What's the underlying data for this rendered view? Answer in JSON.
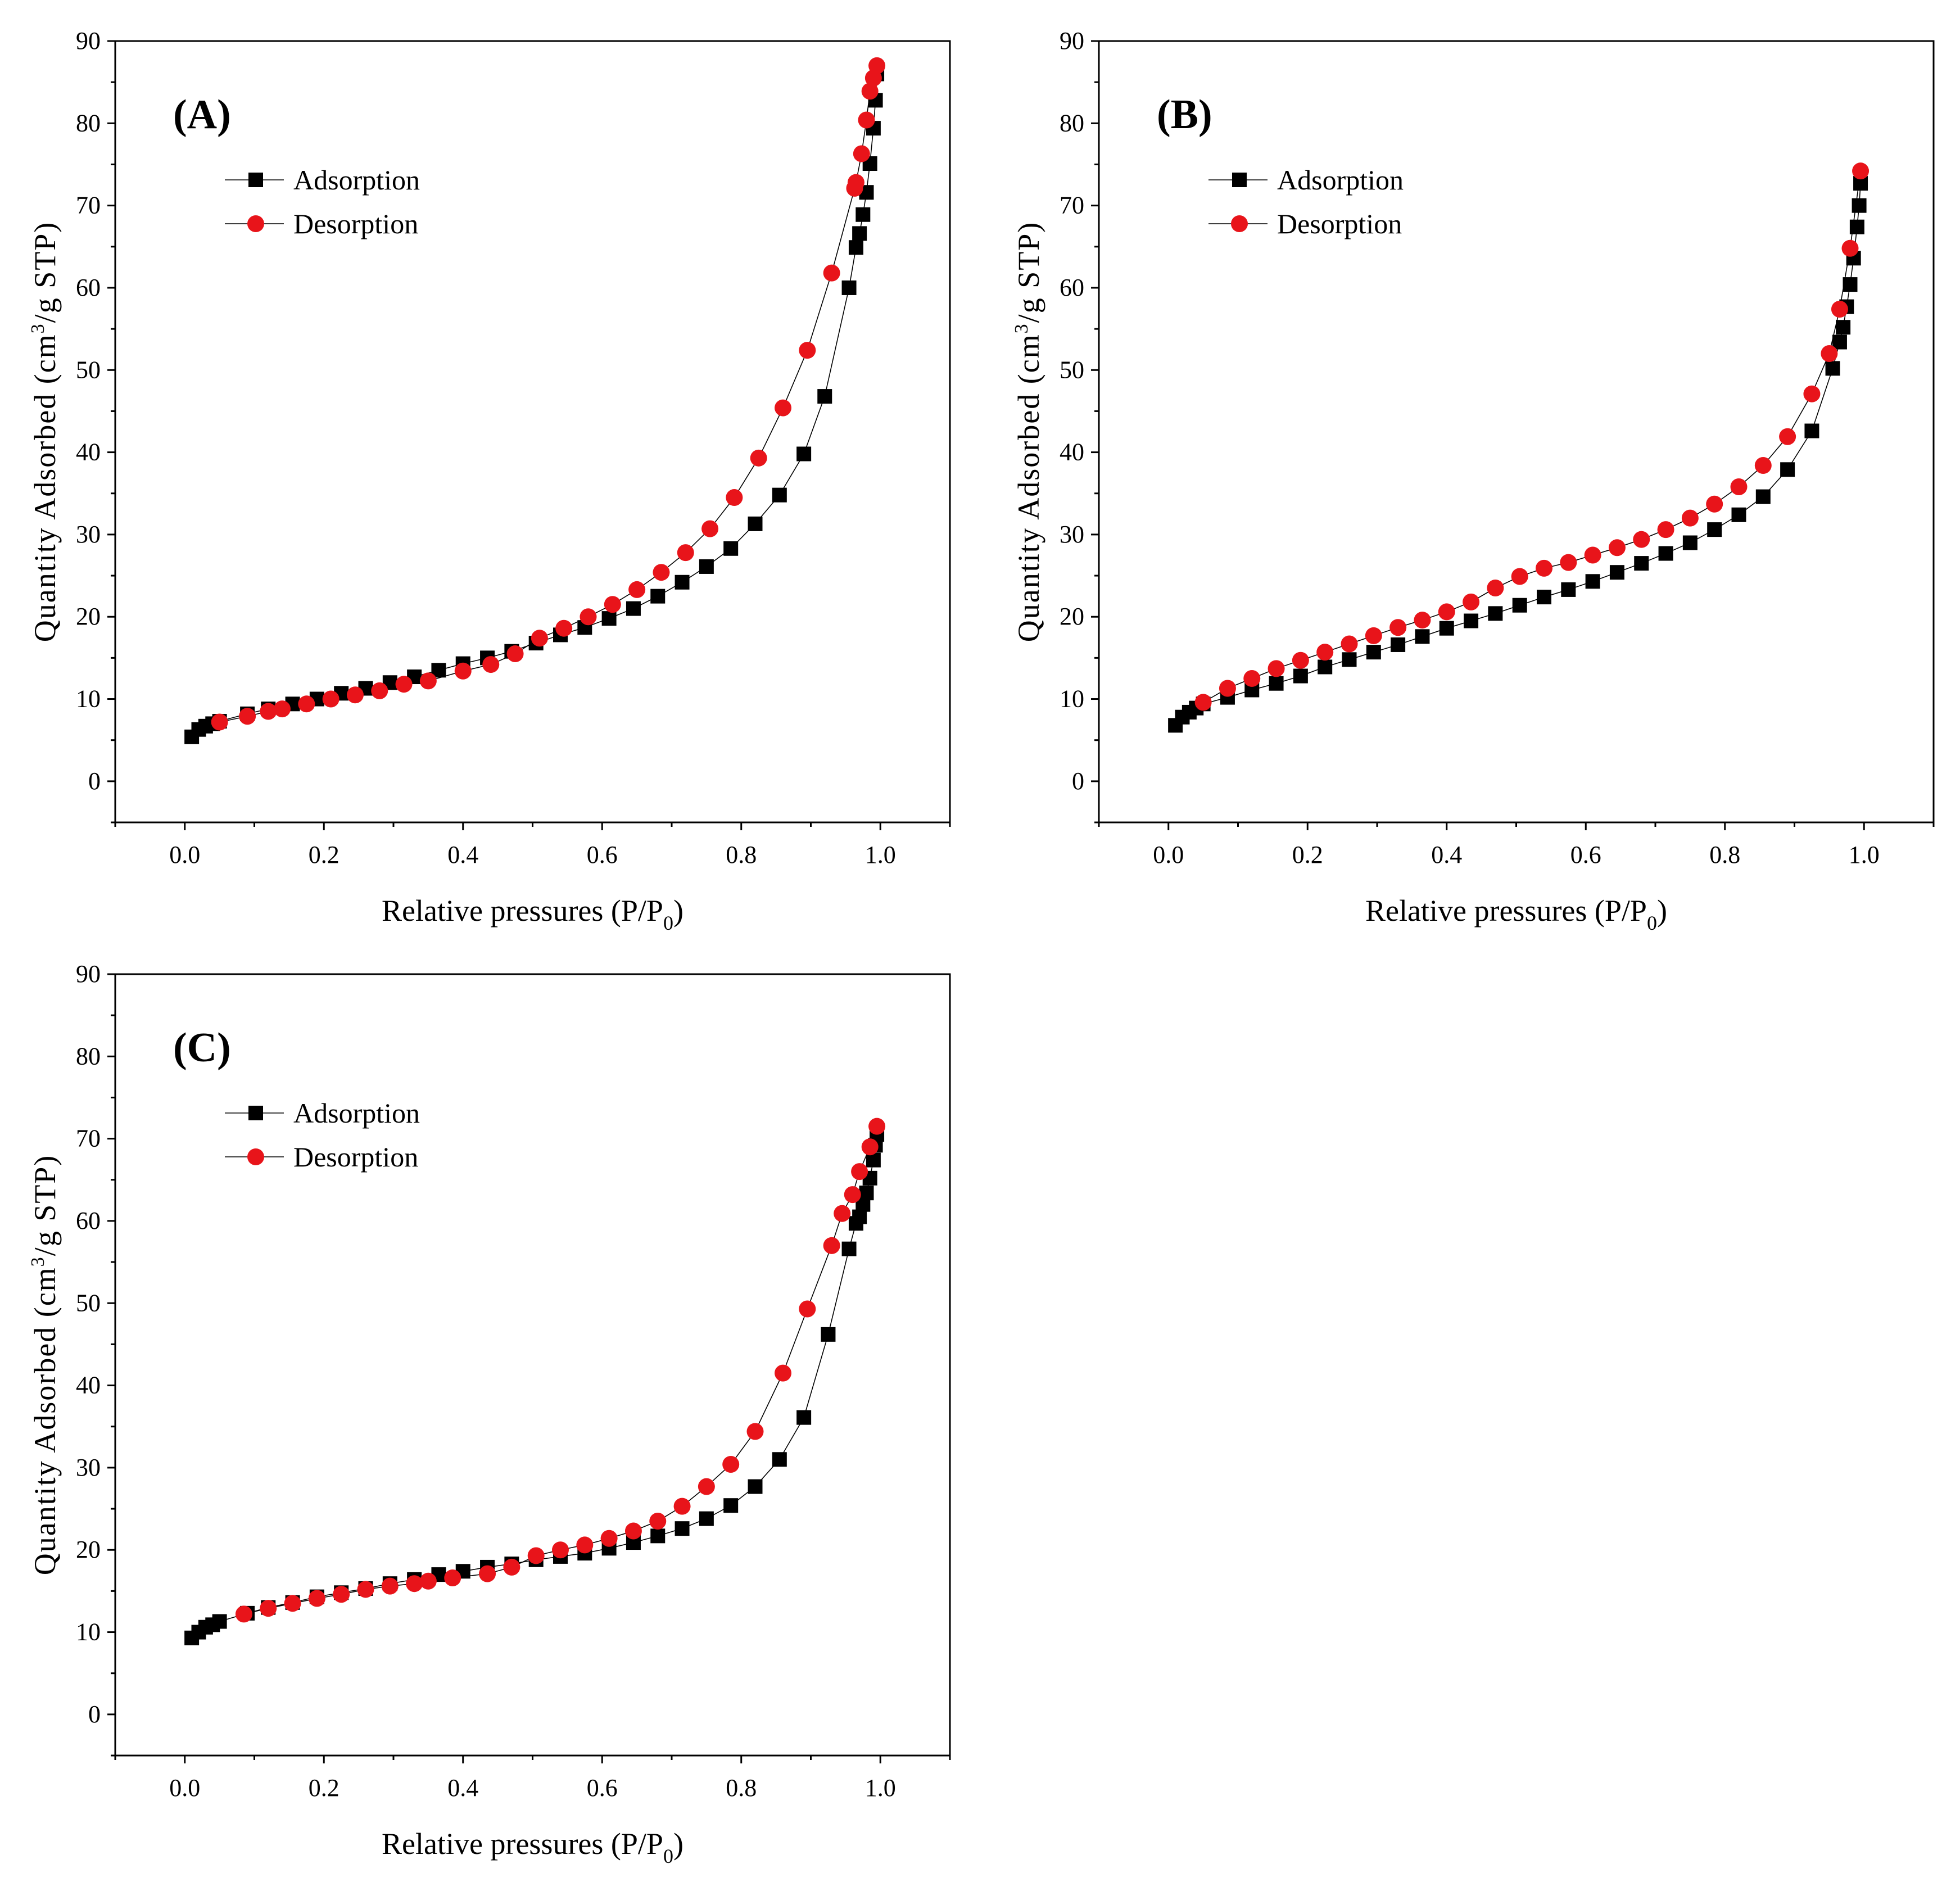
{
  "figure": {
    "x_label": {
      "main": "Relative pressures (P/P",
      "sub": "0",
      "close": ")"
    },
    "y_label": {
      "pre": "Quantity Adsorbed (cm",
      "sup": "3",
      "post": "/g STP)"
    },
    "legend": {
      "adsorption": "Adsorption",
      "desorption": "Desorption"
    },
    "x_ticks": [
      "0.0",
      "0.2",
      "0.4",
      "0.6",
      "0.8",
      "1.0"
    ],
    "y_ticks": [
      "0",
      "10",
      "20",
      "30",
      "40",
      "50",
      "60",
      "70",
      "80",
      "90"
    ],
    "colors": {
      "adsorption": "#000000",
      "desorption": "#e8141a"
    }
  },
  "chart_data": [
    {
      "type": "scatter",
      "panel": "(A)",
      "xlim": [
        -0.1,
        1.1
      ],
      "ylim": [
        -5,
        90
      ],
      "series": [
        {
          "name": "Adsorption",
          "marker": "square",
          "x": [
            0.01,
            0.02,
            0.03,
            0.04,
            0.05,
            0.09,
            0.12,
            0.155,
            0.19,
            0.225,
            0.26,
            0.295,
            0.33,
            0.365,
            0.4,
            0.435,
            0.47,
            0.505,
            0.54,
            0.575,
            0.61,
            0.645,
            0.68,
            0.715,
            0.75,
            0.785,
            0.82,
            0.855,
            0.89,
            0.92,
            0.955,
            0.965,
            0.97,
            0.975,
            0.98,
            0.985,
            0.99,
            0.993,
            0.995
          ],
          "y": [
            5.4,
            6.3,
            6.7,
            7.0,
            7.3,
            8.2,
            8.8,
            9.4,
            10.0,
            10.7,
            11.3,
            12.0,
            12.7,
            13.5,
            14.3,
            15.0,
            15.8,
            16.8,
            17.8,
            18.7,
            19.8,
            21.0,
            22.5,
            24.2,
            26.1,
            28.3,
            31.3,
            34.8,
            39.8,
            46.8,
            60.0,
            64.9,
            66.6,
            68.9,
            71.6,
            75.1,
            79.4,
            82.8,
            86.0
          ]
        },
        {
          "name": "Desorption",
          "marker": "circle",
          "x": [
            0.995,
            0.99,
            0.985,
            0.98,
            0.973,
            0.965,
            0.963,
            0.93,
            0.895,
            0.86,
            0.825,
            0.79,
            0.755,
            0.72,
            0.685,
            0.65,
            0.615,
            0.58,
            0.545,
            0.51,
            0.475,
            0.44,
            0.4,
            0.35,
            0.315,
            0.28,
            0.245,
            0.21,
            0.175,
            0.14,
            0.12,
            0.09,
            0.05
          ],
          "y": [
            87.0,
            85.5,
            83.9,
            80.4,
            76.3,
            72.8,
            72.1,
            61.8,
            52.4,
            45.4,
            39.3,
            34.5,
            30.7,
            27.8,
            25.4,
            23.3,
            21.5,
            20.0,
            18.6,
            17.4,
            15.5,
            14.2,
            13.4,
            12.2,
            11.8,
            11.0,
            10.5,
            10.0,
            9.4,
            8.8,
            8.5,
            7.9,
            7.2
          ]
        }
      ]
    },
    {
      "type": "scatter",
      "panel": "(B)",
      "xlim": [
        -0.1,
        1.1
      ],
      "ylim": [
        -5,
        90
      ],
      "series": [
        {
          "name": "Adsorption",
          "marker": "square",
          "x": [
            0.01,
            0.02,
            0.03,
            0.04,
            0.05,
            0.085,
            0.12,
            0.155,
            0.19,
            0.225,
            0.26,
            0.295,
            0.33,
            0.365,
            0.4,
            0.435,
            0.47,
            0.505,
            0.54,
            0.575,
            0.61,
            0.645,
            0.68,
            0.715,
            0.75,
            0.785,
            0.82,
            0.855,
            0.89,
            0.925,
            0.955,
            0.965,
            0.97,
            0.975,
            0.98,
            0.985,
            0.99,
            0.993,
            0.995
          ],
          "y": [
            6.8,
            7.8,
            8.4,
            8.9,
            9.4,
            10.2,
            11.1,
            11.9,
            12.8,
            13.9,
            14.8,
            15.7,
            16.6,
            17.6,
            18.6,
            19.5,
            20.4,
            21.4,
            22.4,
            23.3,
            24.3,
            25.4,
            26.5,
            27.7,
            29.0,
            30.6,
            32.4,
            34.6,
            37.9,
            42.6,
            50.2,
            53.4,
            55.2,
            57.7,
            60.4,
            63.6,
            67.4,
            70.0,
            72.7
          ]
        },
        {
          "name": "Desorption",
          "marker": "circle",
          "x": [
            0.995,
            0.98,
            0.965,
            0.95,
            0.925,
            0.89,
            0.855,
            0.82,
            0.785,
            0.75,
            0.715,
            0.68,
            0.645,
            0.61,
            0.575,
            0.54,
            0.505,
            0.47,
            0.435,
            0.4,
            0.365,
            0.33,
            0.295,
            0.26,
            0.225,
            0.19,
            0.155,
            0.12,
            0.085,
            0.05
          ],
          "y": [
            74.2,
            64.8,
            57.4,
            52.0,
            47.1,
            41.9,
            38.4,
            35.8,
            33.7,
            32.0,
            30.6,
            29.4,
            28.4,
            27.5,
            26.6,
            25.9,
            24.9,
            23.5,
            21.8,
            20.6,
            19.6,
            18.7,
            17.7,
            16.7,
            15.7,
            14.7,
            13.7,
            12.5,
            11.3,
            9.6
          ]
        }
      ]
    },
    {
      "type": "scatter",
      "panel": "(C)",
      "xlim": [
        -0.1,
        1.1
      ],
      "ylim": [
        -5,
        90
      ],
      "series": [
        {
          "name": "Adsorption",
          "marker": "square",
          "x": [
            0.01,
            0.02,
            0.03,
            0.04,
            0.05,
            0.09,
            0.12,
            0.155,
            0.19,
            0.225,
            0.26,
            0.295,
            0.33,
            0.365,
            0.4,
            0.435,
            0.47,
            0.505,
            0.54,
            0.575,
            0.61,
            0.645,
            0.68,
            0.715,
            0.75,
            0.785,
            0.82,
            0.855,
            0.89,
            0.925,
            0.955,
            0.965,
            0.97,
            0.975,
            0.98,
            0.985,
            0.99,
            0.993,
            0.995
          ],
          "y": [
            9.3,
            10.0,
            10.6,
            10.9,
            11.3,
            12.3,
            13.0,
            13.6,
            14.3,
            14.8,
            15.3,
            15.9,
            16.4,
            17.0,
            17.4,
            17.9,
            18.3,
            18.8,
            19.2,
            19.6,
            20.2,
            20.9,
            21.7,
            22.6,
            23.8,
            25.4,
            27.7,
            31.0,
            36.1,
            46.2,
            56.6,
            59.7,
            60.5,
            62.0,
            63.4,
            65.2,
            67.4,
            69.2,
            70.5
          ]
        },
        {
          "name": "Desorption",
          "marker": "circle",
          "x": [
            0.995,
            0.985,
            0.97,
            0.96,
            0.945,
            0.93,
            0.895,
            0.86,
            0.82,
            0.785,
            0.75,
            0.715,
            0.68,
            0.645,
            0.61,
            0.575,
            0.54,
            0.505,
            0.47,
            0.435,
            0.385,
            0.35,
            0.33,
            0.295,
            0.26,
            0.225,
            0.19,
            0.155,
            0.12,
            0.085
          ],
          "y": [
            71.5,
            69.0,
            66.0,
            63.2,
            60.9,
            57.0,
            49.3,
            41.5,
            34.4,
            30.4,
            27.7,
            25.3,
            23.5,
            22.3,
            21.4,
            20.6,
            20.0,
            19.3,
            17.9,
            17.1,
            16.6,
            16.2,
            15.9,
            15.6,
            15.2,
            14.6,
            14.1,
            13.5,
            12.9,
            12.2
          ]
        }
      ]
    }
  ]
}
